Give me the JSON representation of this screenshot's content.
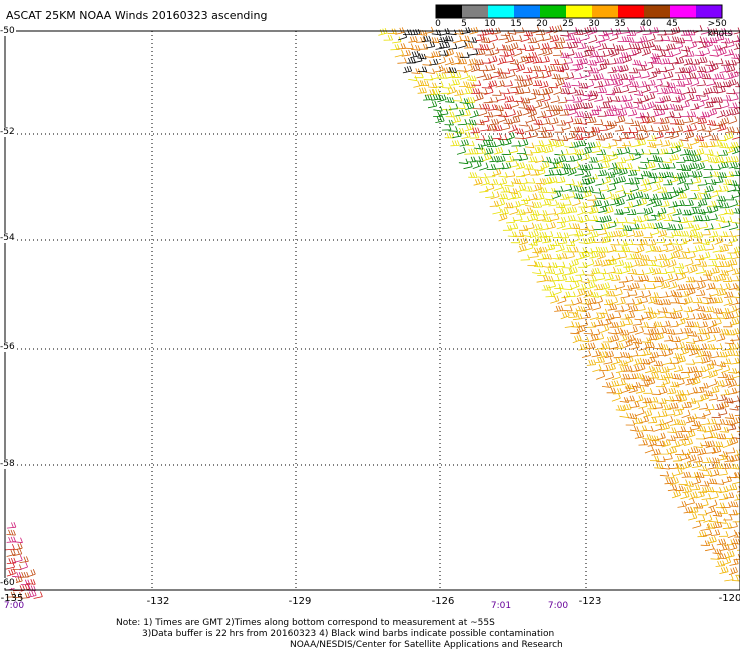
{
  "title": "ASCAT 25KM NOAA Winds 20160323 ascending",
  "legend": {
    "labels": [
      "0",
      "5",
      "10",
      "15",
      "20",
      "25",
      "30",
      "35",
      "40",
      "45",
      ">50 knots"
    ],
    "colors": [
      "#000000",
      "#808080",
      "#00ffff",
      "#0080ff",
      "#00c000",
      "#ffff00",
      "#ffa500",
      "#ff0000",
      "#a04000",
      "#ff00ff",
      "#8000ff"
    ]
  },
  "axes": {
    "x_ticks": [
      "-132",
      "-129",
      "-126",
      "-123",
      "-120"
    ],
    "y_ticks": [
      "-50",
      "-52",
      "-54",
      "-56",
      "-58",
      "-60"
    ],
    "x_corner": "-135",
    "lon_range": [
      -135,
      -120
    ],
    "lat_range": [
      -60,
      -50
    ]
  },
  "times": {
    "left": "7:00",
    "mid1": "7:01",
    "mid2": "7:00"
  },
  "notes": {
    "line1": "Note: 1) Times are GMT 2)Times along bottom correspond to measurement at ~55S",
    "line2": "3)Data buffer is 22 hrs from 20160323 4) Black wind barbs indicate possible contamination",
    "line3": "NOAA/NESDIS/Center for Satellite Applications and Research"
  }
}
